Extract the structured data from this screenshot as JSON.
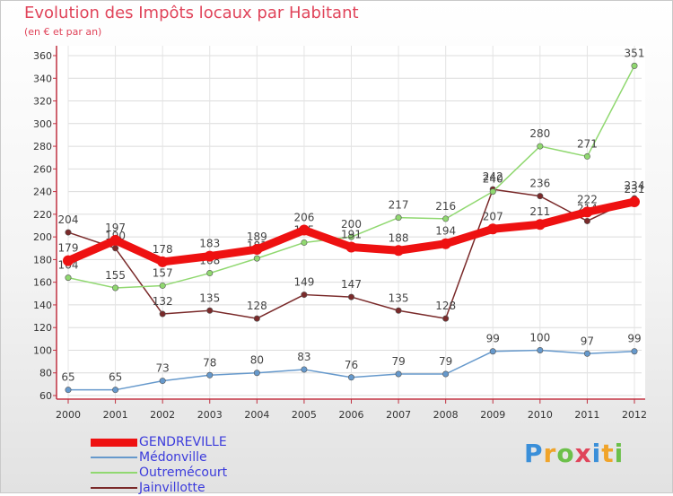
{
  "title": "Evolution des Impôts locaux par Habitant",
  "subtitle": "(en € et par an)",
  "logo": {
    "text": "Proxiti",
    "colors": [
      "#3a8fd9",
      "#f0a42a",
      "#6cc04a",
      "#e0445a",
      "#3a8fd9",
      "#f0a42a",
      "#6cc04a"
    ]
  },
  "chart_data": {
    "type": "line",
    "x": [
      "2000",
      "2001",
      "2002",
      "2003",
      "2004",
      "2005",
      "2006",
      "2007",
      "2008",
      "2009",
      "2010",
      "2011",
      "2012"
    ],
    "ylim": [
      60,
      360
    ],
    "yticks": [
      "60",
      "80",
      "100",
      "120",
      "140",
      "160",
      "180",
      "200",
      "220",
      "240",
      "260",
      "280",
      "300",
      "320",
      "340",
      "360"
    ],
    "grid": true,
    "legend_position": "bottom-left",
    "series": [
      {
        "name": "Jainvillotte",
        "color": "#7a2a2a",
        "values": [
          204,
          190,
          132,
          135,
          128,
          149,
          147,
          135,
          128,
          242,
          236,
          214,
          234
        ],
        "labels": [
          "204",
          "190",
          "132",
          "135",
          "128",
          "149",
          "147",
          "135",
          "128",
          "242",
          "236",
          "214",
          "234"
        ]
      },
      {
        "name": "Outremécourt",
        "color": "#90d870",
        "values": [
          164,
          155,
          157,
          168,
          181,
          195,
          200,
          217,
          216,
          240,
          280,
          271,
          351
        ],
        "labels": [
          "164",
          "155",
          "157",
          "168",
          "181",
          "195",
          "200",
          "217",
          "216",
          "240",
          "280",
          "271",
          "351"
        ]
      },
      {
        "name": "Médonville",
        "color": "#6699cc",
        "values": [
          65,
          65,
          73,
          78,
          80,
          83,
          76,
          79,
          79,
          99,
          100,
          97,
          99
        ],
        "labels": [
          "65",
          "65",
          "73",
          "78",
          "80",
          "83",
          "76",
          "79",
          "79",
          "99",
          "100",
          "97",
          "99"
        ]
      },
      {
        "name": "GENDREVILLE",
        "color": "#ee1111",
        "values": [
          179,
          197,
          178,
          183,
          189,
          206,
          191,
          188,
          194,
          207,
          211,
          222,
          231
        ],
        "labels": [
          "179",
          "197",
          "178",
          "183",
          "189",
          "206",
          "191",
          "188",
          "194",
          "207",
          "211",
          "222",
          "231"
        ]
      }
    ],
    "legend": [
      {
        "name": "GENDREVILLE",
        "color": "#ee1111"
      },
      {
        "name": "Médonville",
        "color": "#6699cc"
      },
      {
        "name": "Outremécourt",
        "color": "#90d870"
      },
      {
        "name": "Jainvillotte",
        "color": "#7a2a2a"
      }
    ]
  }
}
